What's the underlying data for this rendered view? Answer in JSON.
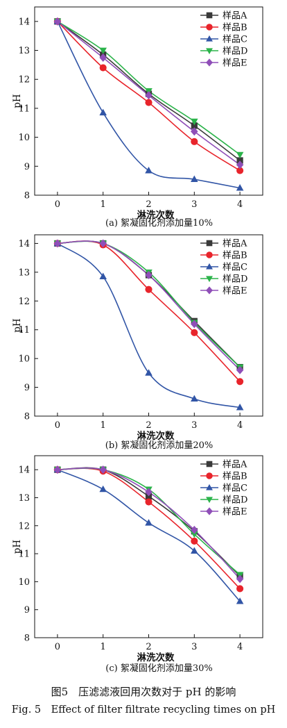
{
  "figure": {
    "caption_zh": "图5　压滤滤液回用次数对于 pH 的影响",
    "caption_en": "Fig. 5　Effect of filter filtrate recycling times on pH"
  },
  "chart_data": [
    {
      "type": "line",
      "caption": "(a) 絮凝固化剂添加量10%",
      "xlabel": "淋洗次数",
      "ylabel": "pH",
      "x": [
        0,
        1,
        2,
        3,
        4
      ],
      "xlim": [
        -0.5,
        4.5
      ],
      "ylim": [
        8,
        14.5
      ],
      "xticks": [
        0,
        1,
        2,
        3,
        4
      ],
      "yticks": [
        8,
        9,
        10,
        11,
        12,
        13,
        14
      ],
      "legend_position": "top-right",
      "series": [
        {
          "name": "样品A",
          "color": "#3a3a3a",
          "marker": "square",
          "values": [
            14.0,
            12.85,
            11.5,
            10.4,
            9.2
          ]
        },
        {
          "name": "样品B",
          "color": "#e8242b",
          "marker": "circle",
          "values": [
            14.0,
            12.4,
            11.2,
            9.85,
            8.85
          ]
        },
        {
          "name": "样品C",
          "color": "#3155a6",
          "marker": "triangle-up",
          "values": [
            14.0,
            10.85,
            8.85,
            8.55,
            8.25
          ]
        },
        {
          "name": "样品D",
          "color": "#2bb34a",
          "marker": "triangle-down",
          "values": [
            14.0,
            13.0,
            11.6,
            10.55,
            9.4
          ]
        },
        {
          "name": "样品E",
          "color": "#8f4fb8",
          "marker": "diamond",
          "values": [
            14.0,
            12.75,
            11.45,
            10.2,
            9.05
          ]
        }
      ]
    },
    {
      "type": "line",
      "caption": "(b) 絮凝固化剂添加量20%",
      "xlabel": "淋洗次数",
      "ylabel": "pH",
      "x": [
        0,
        1,
        2,
        3,
        4
      ],
      "xlim": [
        -0.5,
        4.5
      ],
      "ylim": [
        8,
        14.3
      ],
      "xticks": [
        0,
        1,
        2,
        3,
        4
      ],
      "yticks": [
        8,
        9,
        10,
        11,
        12,
        13,
        14
      ],
      "legend_position": "top-right",
      "series": [
        {
          "name": "样品A",
          "color": "#3a3a3a",
          "marker": "square",
          "values": [
            14.0,
            14.0,
            12.9,
            11.3,
            9.7
          ]
        },
        {
          "name": "样品B",
          "color": "#e8242b",
          "marker": "circle",
          "values": [
            14.0,
            13.95,
            12.4,
            10.9,
            9.2
          ]
        },
        {
          "name": "样品C",
          "color": "#3155a6",
          "marker": "triangle-up",
          "values": [
            14.0,
            12.85,
            9.5,
            8.6,
            8.3
          ]
        },
        {
          "name": "样品D",
          "color": "#2bb34a",
          "marker": "triangle-down",
          "values": [
            14.0,
            14.0,
            13.0,
            11.25,
            9.7
          ]
        },
        {
          "name": "样品E",
          "color": "#8f4fb8",
          "marker": "diamond",
          "values": [
            14.0,
            14.0,
            12.9,
            11.2,
            9.6
          ]
        }
      ]
    },
    {
      "type": "line",
      "caption": "(c) 絮凝固化剂添加量30%",
      "xlabel": "淋洗次数",
      "ylabel": "pH",
      "x": [
        0,
        1,
        2,
        3,
        4
      ],
      "xlim": [
        -0.5,
        4.5
      ],
      "ylim": [
        8,
        14.5
      ],
      "xticks": [
        0,
        1,
        2,
        3,
        4
      ],
      "yticks": [
        8,
        9,
        10,
        11,
        12,
        13,
        14
      ],
      "legend_position": "top-right",
      "series": [
        {
          "name": "样品A",
          "color": "#3a3a3a",
          "marker": "square",
          "values": [
            14.0,
            14.0,
            13.05,
            11.8,
            10.2
          ]
        },
        {
          "name": "样品B",
          "color": "#e8242b",
          "marker": "circle",
          "values": [
            14.0,
            13.95,
            12.85,
            11.45,
            9.75
          ]
        },
        {
          "name": "样品C",
          "color": "#3155a6",
          "marker": "triangle-up",
          "values": [
            14.0,
            13.3,
            12.1,
            11.1,
            9.3
          ]
        },
        {
          "name": "样品D",
          "color": "#2bb34a",
          "marker": "triangle-down",
          "values": [
            14.0,
            14.0,
            13.3,
            11.7,
            10.25
          ]
        },
        {
          "name": "样品E",
          "color": "#8f4fb8",
          "marker": "diamond",
          "values": [
            14.0,
            14.0,
            13.2,
            11.85,
            10.1
          ]
        }
      ]
    }
  ]
}
